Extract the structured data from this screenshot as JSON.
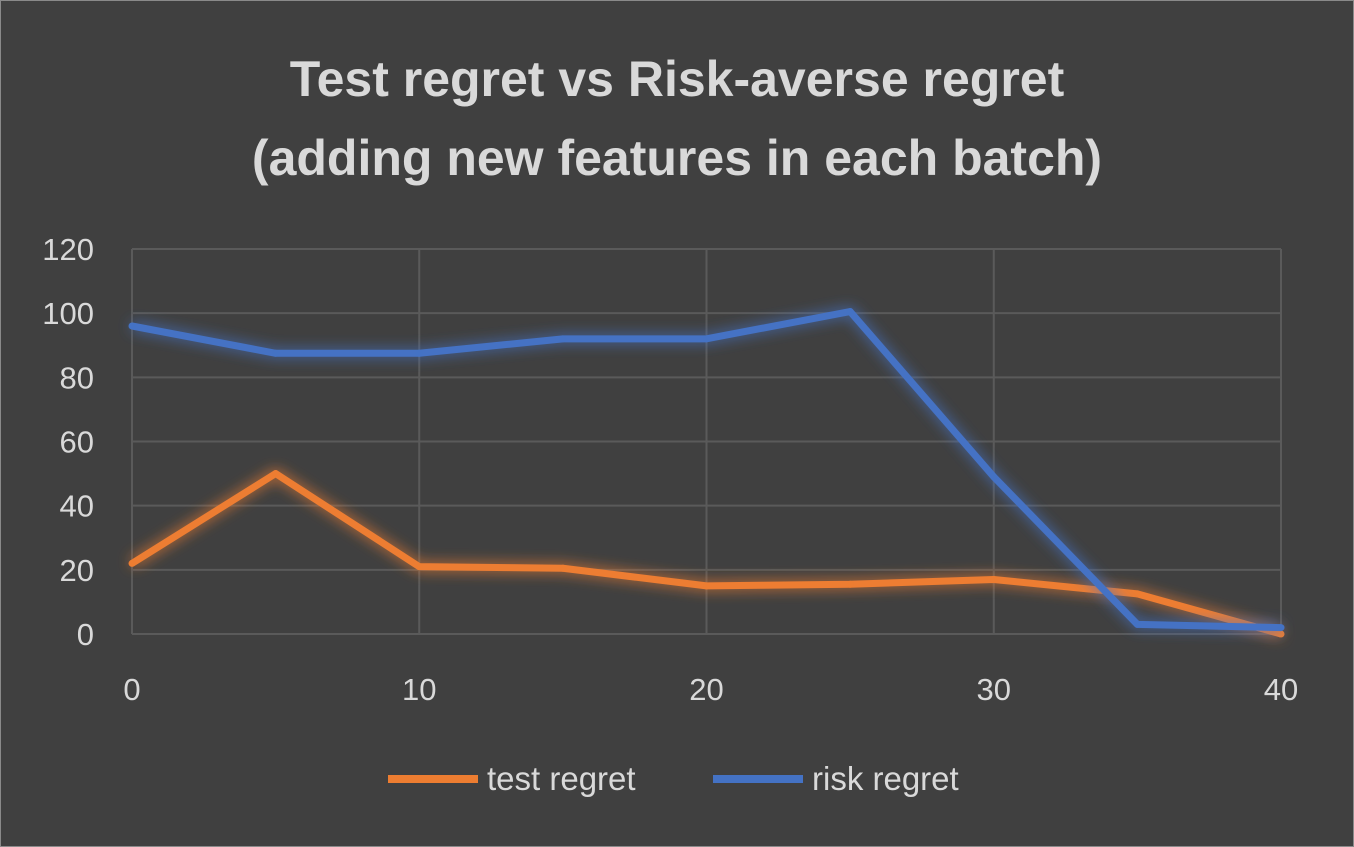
{
  "chart_data": {
    "type": "line",
    "title": [
      "Test regret vs Risk-averse regret",
      "(adding new features in each batch)"
    ],
    "xlabel": "",
    "ylabel": "",
    "x": [
      0,
      5,
      10,
      15,
      20,
      25,
      30,
      35,
      40
    ],
    "xlim": [
      0,
      40
    ],
    "ylim": [
      0,
      120
    ],
    "xticks": [
      0,
      10,
      20,
      30,
      40
    ],
    "yticks": [
      0,
      20,
      40,
      60,
      80,
      100,
      120
    ],
    "grid": true,
    "legend_position": "bottom",
    "series": [
      {
        "name": "test regret",
        "color": "#ed7d31",
        "values": [
          22,
          50,
          21,
          20.5,
          15,
          15.5,
          17,
          12.5,
          0
        ]
      },
      {
        "name": "risk regret",
        "color": "#4472c4",
        "values": [
          96,
          87.5,
          87.5,
          92,
          92,
          100.5,
          49,
          3,
          2
        ]
      }
    ]
  },
  "colors": {
    "background": "#404040",
    "grid": "#5a5a5a",
    "text": "#d9d9d9"
  }
}
